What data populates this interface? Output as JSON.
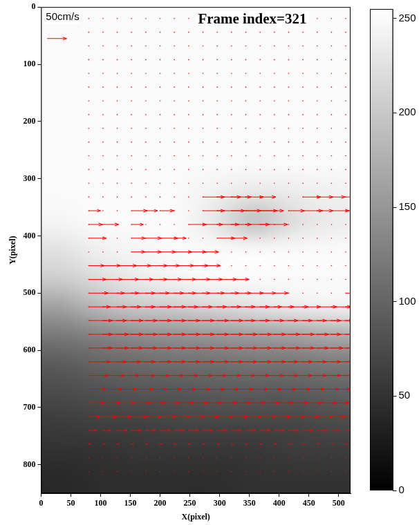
{
  "chart_data": {
    "type": "quiver",
    "title": "Frame index=321",
    "x_label": "X(pixel)",
    "y_label": "Y(pixel)",
    "xlim": [
      0,
      520
    ],
    "ylim": [
      0,
      850
    ],
    "xticks": [
      0,
      50,
      100,
      150,
      200,
      250,
      300,
      350,
      400,
      450,
      500
    ],
    "yticks": [
      0,
      100,
      200,
      300,
      400,
      500,
      600,
      700,
      800
    ],
    "grid": false,
    "color": "#ff0000",
    "reference": {
      "label": "50cm/s",
      "value": 50
    },
    "grid_x": [
      80,
      104,
      128,
      152,
      176,
      200,
      224,
      248,
      272,
      296,
      320,
      344,
      368,
      392,
      416,
      440,
      464,
      488,
      512
    ],
    "grid_y": [
      20,
      44,
      68,
      92,
      116,
      140,
      164,
      188,
      212,
      236,
      260,
      284,
      308,
      332,
      356,
      380,
      404,
      428,
      452,
      476,
      500,
      524,
      548,
      572,
      596,
      620,
      644,
      668,
      692,
      716,
      740,
      764,
      788,
      812
    ],
    "u": [
      [
        0,
        0,
        0,
        0,
        0,
        0,
        0,
        0,
        0,
        0,
        0,
        0,
        0,
        0,
        0,
        0,
        0,
        0,
        0
      ],
      [
        0,
        0,
        0,
        0,
        0,
        0,
        0,
        0,
        0,
        0,
        0,
        0,
        0,
        0,
        0,
        0,
        0,
        0,
        0
      ],
      [
        0,
        0,
        0,
        0,
        0,
        0,
        0,
        0,
        0,
        0,
        0,
        0,
        0,
        0,
        0,
        0,
        0,
        0,
        0
      ],
      [
        0,
        0,
        0,
        0,
        0,
        0,
        0,
        0,
        0,
        0,
        0,
        0,
        0,
        0,
        0,
        0,
        0,
        0,
        0
      ],
      [
        0,
        0,
        0,
        0,
        0,
        0,
        0,
        0,
        0,
        0,
        0,
        0,
        0,
        0,
        0,
        0,
        0,
        0,
        0
      ],
      [
        0,
        0,
        0,
        0,
        0,
        0,
        0,
        0,
        0,
        0,
        0,
        0,
        0,
        0,
        0,
        0,
        0,
        0,
        0
      ],
      [
        0,
        0,
        0,
        0,
        0,
        0,
        0,
        0,
        0,
        0,
        0,
        0,
        0,
        0,
        0,
        0,
        0,
        0,
        0
      ],
      [
        0,
        0,
        0,
        0,
        0,
        0,
        0,
        0,
        0,
        0,
        0,
        0,
        0,
        0,
        0,
        0,
        0,
        0,
        0
      ],
      [
        0,
        0,
        0,
        0,
        0,
        0,
        0,
        0,
        0,
        0,
        0,
        0,
        0,
        0,
        0,
        0,
        0,
        0,
        0
      ],
      [
        0,
        0,
        0,
        0,
        0,
        0,
        0,
        0,
        0,
        0,
        0,
        0,
        0,
        0,
        0,
        0,
        0,
        0,
        0
      ],
      [
        0,
        0,
        0,
        0,
        0,
        0,
        0,
        0,
        0,
        0,
        0,
        0,
        0,
        0,
        0,
        0,
        0,
        0,
        0
      ],
      [
        0,
        0,
        0,
        0,
        0,
        0,
        0,
        0,
        0,
        0,
        0,
        0,
        0,
        0,
        0,
        0,
        0,
        0,
        0
      ],
      [
        0,
        0,
        0,
        0,
        0,
        0,
        0,
        0,
        0,
        0,
        0,
        0,
        0,
        0,
        0,
        0,
        0,
        0,
        0
      ],
      [
        0,
        0,
        0,
        0,
        0,
        0,
        0,
        0,
        55,
        60,
        50,
        45,
        40,
        0,
        0,
        45,
        40,
        35,
        30
      ],
      [
        30,
        0,
        0,
        40,
        30,
        35,
        0,
        0,
        55,
        70,
        75,
        80,
        60,
        0,
        40,
        50,
        40,
        45,
        30
      ],
      [
        35,
        40,
        0,
        30,
        0,
        0,
        0,
        45,
        50,
        55,
        50,
        60,
        70,
        0,
        0,
        0,
        0,
        0,
        0
      ],
      [
        45,
        0,
        0,
        35,
        40,
        45,
        30,
        0,
        0,
        45,
        40,
        0,
        0,
        0,
        0,
        0,
        0,
        0,
        0
      ],
      [
        0,
        0,
        0,
        35,
        40,
        40,
        45,
        45,
        40,
        0,
        0,
        0,
        0,
        0,
        0,
        0,
        0,
        0,
        0
      ],
      [
        40,
        45,
        50,
        50,
        55,
        50,
        50,
        50,
        45,
        0,
        0,
        0,
        0,
        0,
        0,
        0,
        0,
        0,
        0
      ],
      [
        45,
        50,
        55,
        55,
        55,
        55,
        55,
        55,
        50,
        50,
        45,
        0,
        0,
        0,
        0,
        0,
        0,
        0,
        0
      ],
      [
        50,
        55,
        55,
        60,
        60,
        60,
        55,
        55,
        55,
        55,
        50,
        45,
        40,
        35,
        0,
        0,
        0,
        0,
        25
      ],
      [
        55,
        60,
        60,
        60,
        65,
        65,
        60,
        60,
        60,
        60,
        60,
        60,
        55,
        50,
        50,
        45,
        50,
        50,
        45
      ],
      [
        60,
        60,
        65,
        65,
        65,
        65,
        65,
        65,
        65,
        65,
        60,
        60,
        60,
        60,
        60,
        60,
        60,
        55,
        50
      ],
      [
        60,
        65,
        65,
        65,
        65,
        65,
        65,
        65,
        65,
        65,
        65,
        65,
        65,
        65,
        65,
        65,
        60,
        60,
        55
      ],
      [
        60,
        65,
        65,
        65,
        65,
        65,
        65,
        65,
        65,
        65,
        65,
        65,
        65,
        65,
        65,
        65,
        65,
        60,
        55
      ],
      [
        55,
        60,
        60,
        60,
        65,
        65,
        65,
        65,
        65,
        65,
        65,
        65,
        65,
        60,
        60,
        60,
        60,
        60,
        55
      ],
      [
        50,
        55,
        55,
        60,
        60,
        60,
        60,
        60,
        60,
        60,
        60,
        60,
        60,
        60,
        60,
        60,
        60,
        55,
        55
      ],
      [
        45,
        50,
        50,
        55,
        55,
        55,
        55,
        55,
        55,
        55,
        55,
        55,
        55,
        55,
        55,
        55,
        55,
        50,
        50
      ],
      [
        40,
        45,
        45,
        50,
        50,
        50,
        50,
        50,
        50,
        50,
        50,
        50,
        50,
        50,
        50,
        50,
        50,
        45,
        45
      ],
      [
        30,
        35,
        35,
        40,
        40,
        40,
        40,
        40,
        40,
        40,
        40,
        40,
        40,
        40,
        40,
        40,
        40,
        35,
        35
      ],
      [
        20,
        20,
        25,
        25,
        25,
        25,
        25,
        25,
        25,
        25,
        25,
        25,
        25,
        25,
        25,
        25,
        25,
        20,
        20
      ],
      [
        5,
        5,
        5,
        5,
        5,
        5,
        5,
        5,
        5,
        5,
        5,
        5,
        5,
        5,
        5,
        5,
        5,
        5,
        5
      ],
      [
        0,
        0,
        0,
        0,
        0,
        0,
        0,
        0,
        0,
        0,
        0,
        0,
        0,
        0,
        0,
        0,
        0,
        0,
        0
      ],
      [
        0,
        0,
        0,
        0,
        0,
        0,
        0,
        0,
        0,
        0,
        0,
        0,
        0,
        0,
        0,
        0,
        0,
        0,
        0
      ]
    ],
    "background": {
      "x": [
        32.5,
        97.5,
        162.5,
        227.5,
        292.5,
        357.5,
        422.5,
        487.5
      ],
      "y": [
        25,
        75,
        125,
        175,
        225,
        275,
        325,
        375,
        425,
        475,
        525,
        575,
        625,
        675,
        725,
        775,
        825
      ],
      "values": [
        [
          250,
          250,
          250,
          250,
          250,
          250,
          250,
          250
        ],
        [
          250,
          250,
          250,
          250,
          250,
          250,
          250,
          250
        ],
        [
          250,
          250,
          250,
          250,
          250,
          250,
          250,
          250
        ],
        [
          250,
          250,
          250,
          250,
          250,
          250,
          250,
          250
        ],
        [
          250,
          250,
          250,
          250,
          250,
          250,
          250,
          250
        ],
        [
          250,
          250,
          250,
          250,
          250,
          250,
          250,
          250
        ],
        [
          250,
          250,
          250,
          250,
          240,
          230,
          235,
          240
        ],
        [
          245,
          250,
          250,
          250,
          230,
          190,
          220,
          235
        ],
        [
          225,
          240,
          245,
          250,
          250,
          250,
          250,
          250
        ],
        [
          205,
          220,
          235,
          245,
          250,
          250,
          250,
          250
        ],
        [
          160,
          185,
          200,
          205,
          215,
          225,
          235,
          240
        ],
        [
          120,
          130,
          140,
          145,
          150,
          155,
          160,
          170
        ],
        [
          90,
          100,
          105,
          110,
          110,
          115,
          115,
          120
        ],
        [
          75,
          80,
          85,
          85,
          90,
          90,
          90,
          95
        ],
        [
          60,
          65,
          65,
          70,
          70,
          70,
          70,
          75
        ],
        [
          50,
          50,
          55,
          55,
          55,
          55,
          60,
          60
        ],
        [
          40,
          45,
          45,
          45,
          45,
          50,
          50,
          50
        ]
      ]
    },
    "colorbar": {
      "range": [
        0,
        255
      ],
      "ticks": [
        0,
        50,
        100,
        150,
        200,
        250
      ]
    }
  }
}
